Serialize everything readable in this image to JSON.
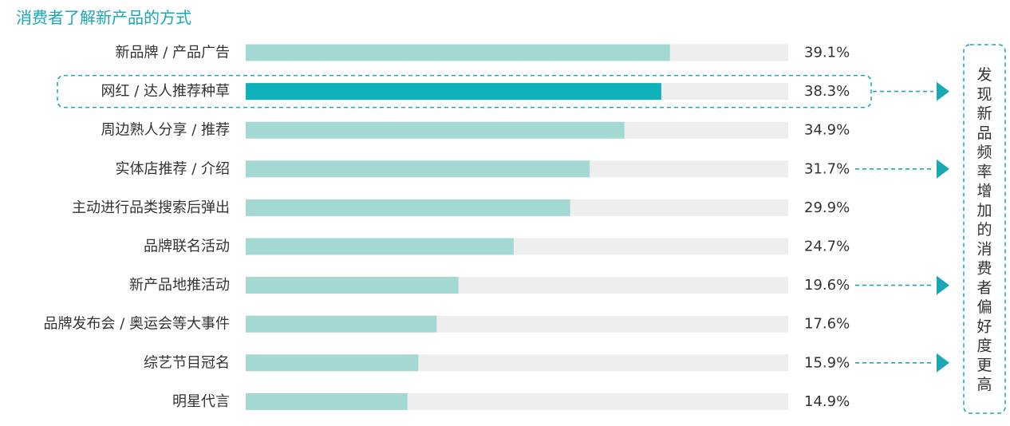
{
  "chart_data": {
    "type": "bar",
    "orientation": "horizontal",
    "title": "消费者了解新产品的方式",
    "xlim": [
      0,
      50
    ],
    "categories": [
      "新品牌 / 产品广告",
      "网红 / 达人推荐种草",
      "周边熟人分享 / 推荐",
      "实体店推荐 / 介绍",
      "主动进行品类搜索后弹出",
      "品牌联名活动",
      "新产品地推活动",
      "品牌发布会 / 奥运会等大事件",
      "综艺节目冠名",
      "明星代言"
    ],
    "values": [
      39.1,
      38.3,
      34.9,
      31.7,
      29.9,
      24.7,
      19.6,
      17.6,
      15.9,
      14.9
    ],
    "value_labels": [
      "39.1%",
      "38.3%",
      "34.9%",
      "31.7%",
      "29.9%",
      "24.7%",
      "19.6%",
      "17.6%",
      "15.9%",
      "14.9%"
    ],
    "highlight_index": 1,
    "arrow_indices": [
      1,
      3,
      6,
      8
    ],
    "side_note": "发现新品频率增加的消费者偏好度更高",
    "colors": {
      "bar": "#a3d8d3",
      "bar_highlight": "#0fb1bb",
      "track": "#eeeeee",
      "accent": "#19a9b4"
    }
  }
}
